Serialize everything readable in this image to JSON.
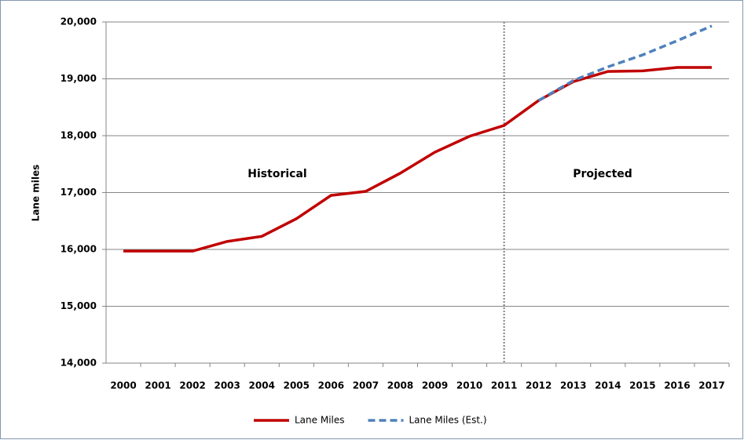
{
  "chart_data": {
    "type": "line",
    "y_label": "Lane miles",
    "annotations": [
      "Historical",
      "Projected"
    ],
    "categories": [
      "2000",
      "2001",
      "2002",
      "2003",
      "2004",
      "2005",
      "2006",
      "2007",
      "2008",
      "2009",
      "2010",
      "2011",
      "2012",
      "2013",
      "2014",
      "2015",
      "2016",
      "2017"
    ],
    "series": [
      {
        "name": "Lane Miles",
        "color": "#c00000",
        "dashed": false,
        "values": [
          15970,
          15970,
          15970,
          16140,
          16230,
          16540,
          16950,
          17020,
          17340,
          17710,
          17990,
          18180,
          18620,
          18950,
          19130,
          19140,
          19200,
          19200
        ]
      },
      {
        "name": "Lane Miles (Est.)",
        "color": "#4f81bd",
        "dashed": true,
        "values": [
          null,
          null,
          null,
          null,
          null,
          null,
          null,
          null,
          null,
          null,
          null,
          null,
          18620,
          18970,
          19210,
          19420,
          19670,
          19930
        ]
      }
    ],
    "divider_index": 11,
    "ylim": [
      14000,
      20000
    ],
    "yticks": [
      {
        "value": 14000,
        "label": "14,000"
      },
      {
        "value": 15000,
        "label": "15,000"
      },
      {
        "value": 16000,
        "label": "16,000"
      },
      {
        "value": 17000,
        "label": "17,000"
      },
      {
        "value": 18000,
        "label": "18,000"
      },
      {
        "value": 19000,
        "label": "19,000"
      },
      {
        "value": 20000,
        "label": "20,000"
      }
    ],
    "grid": true,
    "legend": "bottom"
  }
}
